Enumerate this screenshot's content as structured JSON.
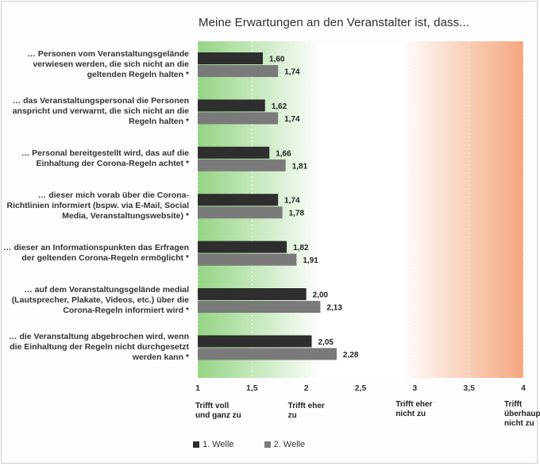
{
  "chart_data": {
    "type": "bar",
    "orientation": "horizontal",
    "title": "Meine Erwartungen an den Veranstalter ist, dass...",
    "categories": [
      "… Personen vom Veranstaltungsgelände verwiesen werden, die sich nicht an die geltenden Regeln halten *",
      "… das Veranstaltungspersonal die Personen anspricht und verwarnt, die sich nicht an die Regeln halten *",
      "… Personal bereitgestellt wird, das auf die Einhaltung der Corona-Regeln achtet *",
      "… dieser mich vorab über die Corona-Richtlinien informiert (bspw. via E-Mail, Social Media, Veranstaltungswebsite) *",
      "… dieser an Informationspunkten das Erfragen der geltenden Corona-Regeln ermöglicht *",
      "… auf dem Veranstaltungsgelände medial (Lautsprecher, Plakate, Videos, etc.) über die Corona-Regeln informiert wird *",
      "… die Veranstaltung abgebrochen wird, wenn die Einhaltung der Regeln nicht durchgesetzt werden kann *"
    ],
    "series": [
      {
        "name": "1. Welle",
        "color": "#2e2e2e",
        "values": [
          1.6,
          1.62,
          1.66,
          1.74,
          1.82,
          2.0,
          2.05
        ],
        "labels": [
          "1,60",
          "1,62",
          "1,66",
          "1,74",
          "1,82",
          "2,00",
          "2,05"
        ]
      },
      {
        "name": "2. Welle",
        "color": "#7a7a7a",
        "values": [
          1.74,
          1.74,
          1.81,
          1.78,
          1.91,
          2.13,
          2.28
        ],
        "labels": [
          "1,74",
          "1,74",
          "1,81",
          "1,78",
          "1,91",
          "2,13",
          "2,28"
        ]
      }
    ],
    "xlim": [
      1,
      4
    ],
    "xticks": [
      1,
      1.5,
      2,
      2.5,
      3,
      3.5,
      4
    ],
    "xtick_labels": [
      "1",
      "1,5",
      "2",
      "2,5",
      "3",
      "3,5",
      "4"
    ],
    "scale_anchors": [
      {
        "value": 1,
        "text": "Trifft voll und ganz zu"
      },
      {
        "value": 2,
        "text": "Trifft eher zu"
      },
      {
        "value": 3,
        "text": "Trifft eher nicht zu"
      },
      {
        "value": 4,
        "text": "Trifft überhaupt nicht zu"
      }
    ],
    "background_gradient": [
      "#8fd27e",
      "#ffffff",
      "#f4a77d"
    ],
    "grid": true,
    "legend_position": "bottom-left"
  }
}
